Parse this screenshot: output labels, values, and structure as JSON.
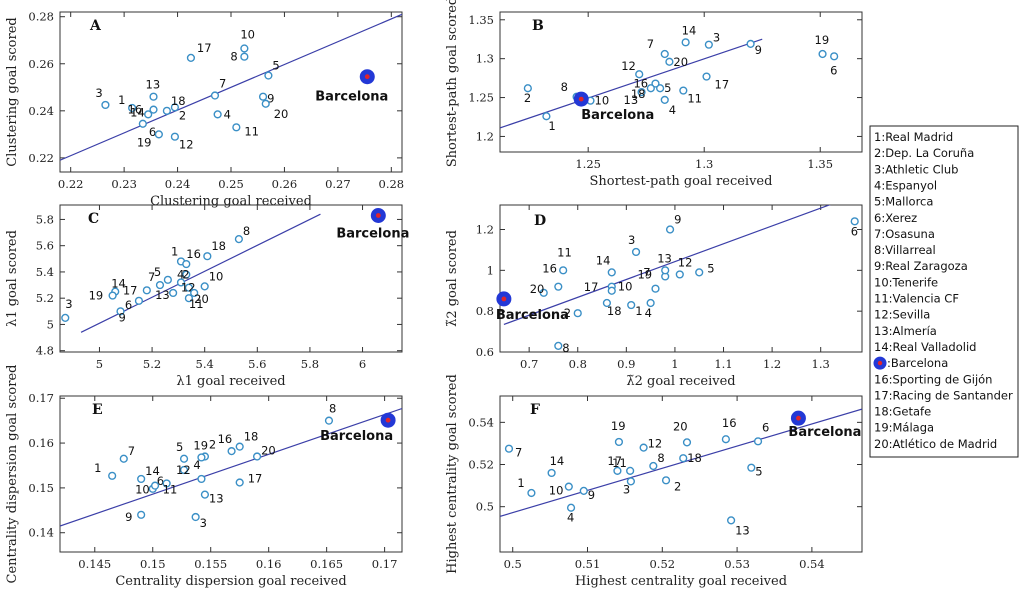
{
  "chart_data": [
    {
      "type": "scatter",
      "panel": "A",
      "xlabel": "Clustering goal received",
      "ylabel": "Clustering goal scored",
      "xlim": [
        0.218,
        0.282
      ],
      "ylim": [
        0.214,
        0.282
      ],
      "xticks": [
        0.22,
        0.23,
        0.24,
        0.25,
        0.26,
        0.27,
        0.28
      ],
      "yticks": [
        0.22,
        0.24,
        0.26,
        0.28
      ],
      "fit_line": [
        [
          0.218,
          0.219
        ],
        [
          0.282,
          0.281
        ]
      ],
      "points": [
        {
          "label": "1",
          "x": 0.2315,
          "y": 0.2412
        },
        {
          "label": "2",
          "x": 0.2395,
          "y": 0.2415
        },
        {
          "label": "3",
          "x": 0.2265,
          "y": 0.2425
        },
        {
          "label": "4",
          "x": 0.2475,
          "y": 0.2385
        },
        {
          "label": "5",
          "x": 0.257,
          "y": 0.255
        },
        {
          "label": "6",
          "x": 0.2335,
          "y": 0.2345
        },
        {
          "label": "7",
          "x": 0.247,
          "y": 0.2465
        },
        {
          "label": "8",
          "x": 0.2525,
          "y": 0.263
        },
        {
          "label": "9",
          "x": 0.256,
          "y": 0.246
        },
        {
          "label": "10",
          "x": 0.2525,
          "y": 0.2665
        },
        {
          "label": "11",
          "x": 0.251,
          "y": 0.233
        },
        {
          "label": "12",
          "x": 0.2395,
          "y": 0.229
        },
        {
          "label": "13",
          "x": 0.2355,
          "y": 0.246
        },
        {
          "label": "14",
          "x": 0.2345,
          "y": 0.2385
        },
        {
          "label": "16",
          "x": 0.2355,
          "y": 0.2405
        },
        {
          "label": "17",
          "x": 0.2425,
          "y": 0.2625
        },
        {
          "label": "18",
          "x": 0.238,
          "y": 0.24
        },
        {
          "label": "19",
          "x": 0.2365,
          "y": 0.23
        },
        {
          "label": "20",
          "x": 0.2565,
          "y": 0.243
        }
      ],
      "highlight": {
        "label": "Barcelona",
        "x": 0.2755,
        "y": 0.2545
      }
    },
    {
      "type": "scatter",
      "panel": "B",
      "xlabel": "Shortest-path goal received",
      "ylabel": "Shortest-path goal scored",
      "xlim": [
        1.212,
        1.368
      ],
      "ylim": [
        1.18,
        1.36
      ],
      "xticks": [
        1.25,
        1.3,
        1.35
      ],
      "yticks": [
        1.2,
        1.25,
        1.3,
        1.35
      ],
      "fit_line": [
        [
          1.212,
          1.211
        ],
        [
          1.325,
          1.325
        ]
      ],
      "points": [
        {
          "label": "1",
          "x": 1.232,
          "y": 1.226
        },
        {
          "label": "2",
          "x": 1.224,
          "y": 1.262
        },
        {
          "label": "3",
          "x": 1.302,
          "y": 1.318
        },
        {
          "label": "4",
          "x": 1.283,
          "y": 1.247
        },
        {
          "label": "5",
          "x": 1.281,
          "y": 1.262
        },
        {
          "label": "6",
          "x": 1.356,
          "y": 1.303
        },
        {
          "label": "7",
          "x": 1.283,
          "y": 1.306
        },
        {
          "label": "8",
          "x": 1.245,
          "y": 1.251
        },
        {
          "label": "9",
          "x": 1.32,
          "y": 1.319
        },
        {
          "label": "10",
          "x": 1.251,
          "y": 1.246
        },
        {
          "label": "11",
          "x": 1.291,
          "y": 1.259
        },
        {
          "label": "12",
          "x": 1.272,
          "y": 1.28
        },
        {
          "label": "13",
          "x": 1.273,
          "y": 1.257
        },
        {
          "label": "14",
          "x": 1.292,
          "y": 1.321
        },
        {
          "label": "16",
          "x": 1.279,
          "y": 1.268
        },
        {
          "label": "17",
          "x": 1.301,
          "y": 1.277
        },
        {
          "label": "18",
          "x": 1.277,
          "y": 1.262
        },
        {
          "label": "19",
          "x": 1.351,
          "y": 1.306
        },
        {
          "label": "20",
          "x": 1.285,
          "y": 1.296
        }
      ],
      "highlight": {
        "label": "Barcelona",
        "x": 1.247,
        "y": 1.248
      }
    },
    {
      "type": "scatter",
      "panel": "C",
      "xlabel": "λ1 goal received",
      "ylabel": "λ1 goal scored",
      "xlim": [
        4.85,
        6.15
      ],
      "ylim": [
        4.79,
        5.91
      ],
      "xticks": [
        5,
        5.2,
        5.4,
        5.6,
        5.8,
        6
      ],
      "xtick_labels": [
        "5",
        "5.2",
        "5.4",
        "5.6",
        "5.8",
        "6"
      ],
      "yticks": [
        4.8,
        5,
        5.2,
        5.4,
        5.6,
        5.8
      ],
      "yticklabels": [
        "4.8",
        "5",
        "5.2",
        "5.4",
        "5.6",
        "5.8"
      ],
      "fit_line": [
        [
          4.93,
          4.94
        ],
        [
          5.84,
          5.84
        ]
      ],
      "points": [
        {
          "label": "1",
          "x": 5.31,
          "y": 5.48
        },
        {
          "label": "2",
          "x": 5.33,
          "y": 5.38
        },
        {
          "label": "3",
          "x": 4.87,
          "y": 5.05
        },
        {
          "label": "4",
          "x": 5.31,
          "y": 5.32
        },
        {
          "label": "5",
          "x": 5.26,
          "y": 5.34
        },
        {
          "label": "6",
          "x": 5.15,
          "y": 5.18
        },
        {
          "label": "7",
          "x": 5.23,
          "y": 5.3
        },
        {
          "label": "8",
          "x": 5.53,
          "y": 5.65
        },
        {
          "label": "9",
          "x": 5.08,
          "y": 5.1
        },
        {
          "label": "10",
          "x": 5.4,
          "y": 5.29
        },
        {
          "label": "11",
          "x": 5.34,
          "y": 5.2
        },
        {
          "label": "12",
          "x": 5.34,
          "y": 5.28
        },
        {
          "label": "13",
          "x": 5.28,
          "y": 5.24
        },
        {
          "label": "14",
          "x": 5.06,
          "y": 5.25
        },
        {
          "label": "16",
          "x": 5.33,
          "y": 5.46
        },
        {
          "label": "17",
          "x": 5.18,
          "y": 5.26
        },
        {
          "label": "18",
          "x": 5.41,
          "y": 5.52
        },
        {
          "label": "19",
          "x": 5.05,
          "y": 5.22
        },
        {
          "label": "20",
          "x": 5.36,
          "y": 5.24
        }
      ],
      "highlight": {
        "label": "Barcelona",
        "x": 6.06,
        "y": 5.83
      }
    },
    {
      "type": "scatter",
      "panel": "D",
      "xlabel": "λ̃2 goal received",
      "ylabel": "λ̃2 goal scored",
      "xlim": [
        0.64,
        1.385
      ],
      "ylim": [
        0.6,
        1.32
      ],
      "xticks": [
        0.7,
        0.8,
        0.9,
        1,
        1.1,
        1.2,
        1.3
      ],
      "yticks": [
        0.6,
        0.8,
        1,
        1.2
      ],
      "fit_line": [
        [
          0.648,
          0.735
        ],
        [
          1.338,
          1.338
        ]
      ],
      "points": [
        {
          "label": "1",
          "x": 0.91,
          "y": 0.83
        },
        {
          "label": "2",
          "x": 0.8,
          "y": 0.79
        },
        {
          "label": "3",
          "x": 0.92,
          "y": 1.09
        },
        {
          "label": "4",
          "x": 0.95,
          "y": 0.84
        },
        {
          "label": "5",
          "x": 1.05,
          "y": 0.99
        },
        {
          "label": "6",
          "x": 1.37,
          "y": 1.24
        },
        {
          "label": "7",
          "x": 0.98,
          "y": 0.97
        },
        {
          "label": "8",
          "x": 0.76,
          "y": 0.63
        },
        {
          "label": "9",
          "x": 0.99,
          "y": 1.2
        },
        {
          "label": "10",
          "x": 0.87,
          "y": 0.92
        },
        {
          "label": "11",
          "x": 0.77,
          "y": 1.0
        },
        {
          "label": "12",
          "x": 1.01,
          "y": 0.98
        },
        {
          "label": "13",
          "x": 0.98,
          "y": 1.0
        },
        {
          "label": "14",
          "x": 0.87,
          "y": 0.99
        },
        {
          "label": "16",
          "x": 0.76,
          "y": 0.92
        },
        {
          "label": "17",
          "x": 0.87,
          "y": 0.9
        },
        {
          "label": "18",
          "x": 0.86,
          "y": 0.84
        },
        {
          "label": "19",
          "x": 0.96,
          "y": 0.91
        },
        {
          "label": "20",
          "x": 0.73,
          "y": 0.89
        }
      ],
      "highlight": {
        "label": "Barcelona",
        "x": 0.648,
        "y": 0.86
      }
    },
    {
      "type": "scatter",
      "panel": "E",
      "xlabel": "Centrality dispersion goal received",
      "ylabel": "Centrality dispersion goal scored",
      "xlim": [
        0.142,
        0.1715
      ],
      "ylim": [
        0.1357,
        0.1705
      ],
      "xticks": [
        0.145,
        0.15,
        0.155,
        0.16,
        0.165,
        0.17
      ],
      "yticks": [
        0.14,
        0.15,
        0.16,
        0.17
      ],
      "fit_line": [
        [
          0.142,
          0.1415
        ],
        [
          0.1715,
          0.1677
        ]
      ],
      "points": [
        {
          "label": "1",
          "x": 0.1465,
          "y": 0.1527
        },
        {
          "label": "2",
          "x": 0.1545,
          "y": 0.157
        },
        {
          "label": "3",
          "x": 0.1537,
          "y": 0.1435
        },
        {
          "label": "4",
          "x": 0.1542,
          "y": 0.152
        },
        {
          "label": "5",
          "x": 0.1527,
          "y": 0.1565
        },
        {
          "label": "6",
          "x": 0.15,
          "y": 0.1498
        },
        {
          "label": "7",
          "x": 0.1475,
          "y": 0.1565
        },
        {
          "label": "8",
          "x": 0.1652,
          "y": 0.165
        },
        {
          "label": "9",
          "x": 0.149,
          "y": 0.144
        },
        {
          "label": "10",
          "x": 0.1502,
          "y": 0.1505
        },
        {
          "label": "11",
          "x": 0.1512,
          "y": 0.151
        },
        {
          "label": "12",
          "x": 0.1527,
          "y": 0.154
        },
        {
          "label": "13",
          "x": 0.1545,
          "y": 0.1485
        },
        {
          "label": "14",
          "x": 0.149,
          "y": 0.152
        },
        {
          "label": "16",
          "x": 0.1568,
          "y": 0.1582
        },
        {
          "label": "17",
          "x": 0.1575,
          "y": 0.1512
        },
        {
          "label": "18",
          "x": 0.1575,
          "y": 0.1592
        },
        {
          "label": "19",
          "x": 0.1542,
          "y": 0.1568
        },
        {
          "label": "20",
          "x": 0.159,
          "y": 0.157
        }
      ],
      "highlight": {
        "label": "Barcelona",
        "x": 0.1703,
        "y": 0.1651
      }
    },
    {
      "type": "scatter",
      "panel": "F",
      "xlabel": "Highest centrality goal received",
      "ylabel": "Highest centrality goal scored",
      "xlim": [
        0.4983,
        0.5467
      ],
      "ylim": [
        0.4785,
        0.5525
      ],
      "xticks": [
        0.5,
        0.51,
        0.52,
        0.53,
        0.54
      ],
      "yticks": [
        0.5,
        0.52,
        0.54
      ],
      "fit_line": [
        [
          0.4983,
          0.4954
        ],
        [
          0.5467,
          0.5463
        ]
      ],
      "points": [
        {
          "label": "1",
          "x": 0.5025,
          "y": 0.5065
        },
        {
          "label": "2",
          "x": 0.5205,
          "y": 0.5125
        },
        {
          "label": "3",
          "x": 0.5158,
          "y": 0.512
        },
        {
          "label": "4",
          "x": 0.5078,
          "y": 0.4995
        },
        {
          "label": "5",
          "x": 0.5319,
          "y": 0.5185
        },
        {
          "label": "6",
          "x": 0.5328,
          "y": 0.531
        },
        {
          "label": "7",
          "x": 0.4995,
          "y": 0.5275
        },
        {
          "label": "8",
          "x": 0.5188,
          "y": 0.5193
        },
        {
          "label": "9",
          "x": 0.5095,
          "y": 0.5075
        },
        {
          "label": "10",
          "x": 0.5075,
          "y": 0.5095
        },
        {
          "label": "11",
          "x": 0.5157,
          "y": 0.517
        },
        {
          "label": "12",
          "x": 0.5175,
          "y": 0.528
        },
        {
          "label": "13",
          "x": 0.5292,
          "y": 0.4935
        },
        {
          "label": "14",
          "x": 0.5052,
          "y": 0.516
        },
        {
          "label": "16",
          "x": 0.5285,
          "y": 0.532
        },
        {
          "label": "17",
          "x": 0.514,
          "y": 0.517
        },
        {
          "label": "18",
          "x": 0.5228,
          "y": 0.523
        },
        {
          "label": "19",
          "x": 0.5142,
          "y": 0.5307
        },
        {
          "label": "20",
          "x": 0.5233,
          "y": 0.5305
        }
      ],
      "highlight": {
        "label": "Barcelona",
        "x": 0.5382,
        "y": 0.542
      }
    }
  ],
  "legend": [
    {
      "id": "1",
      "text": "1:Real Madrid"
    },
    {
      "id": "2",
      "text": "2:Dep. La Coruña"
    },
    {
      "id": "3",
      "text": "3:Athletic Club"
    },
    {
      "id": "4",
      "text": "4:Espanyol"
    },
    {
      "id": "5",
      "text": "5:Mallorca"
    },
    {
      "id": "6",
      "text": "6:Xerez"
    },
    {
      "id": "7",
      "text": "7:Osasuna"
    },
    {
      "id": "8",
      "text": "8:Villarreal"
    },
    {
      "id": "9",
      "text": "9:Real Zaragoza"
    },
    {
      "id": "10",
      "text": "10:Tenerife"
    },
    {
      "id": "11",
      "text": "11:Valencia CF"
    },
    {
      "id": "12",
      "text": "12:Sevilla"
    },
    {
      "id": "13",
      "text": "13:Almería"
    },
    {
      "id": "14",
      "text": "14:Real Valladolid"
    },
    {
      "id": "15",
      "text": ":Barcelona",
      "marker": true
    },
    {
      "id": "16",
      "text": "16:Sporting de Gijón"
    },
    {
      "id": "17",
      "text": "17:Racing de Santander"
    },
    {
      "id": "18",
      "text": "18:Getafe"
    },
    {
      "id": "19",
      "text": "19:Málaga"
    },
    {
      "id": "20",
      "text": "20:Atlético de Madrid"
    }
  ],
  "colors": {
    "point_stroke": "#3a8fc6",
    "fit_line": "#3b3fa8",
    "highlight_outer": "#2338d6",
    "highlight_inner": "#e0242c",
    "axis": "#333333"
  }
}
